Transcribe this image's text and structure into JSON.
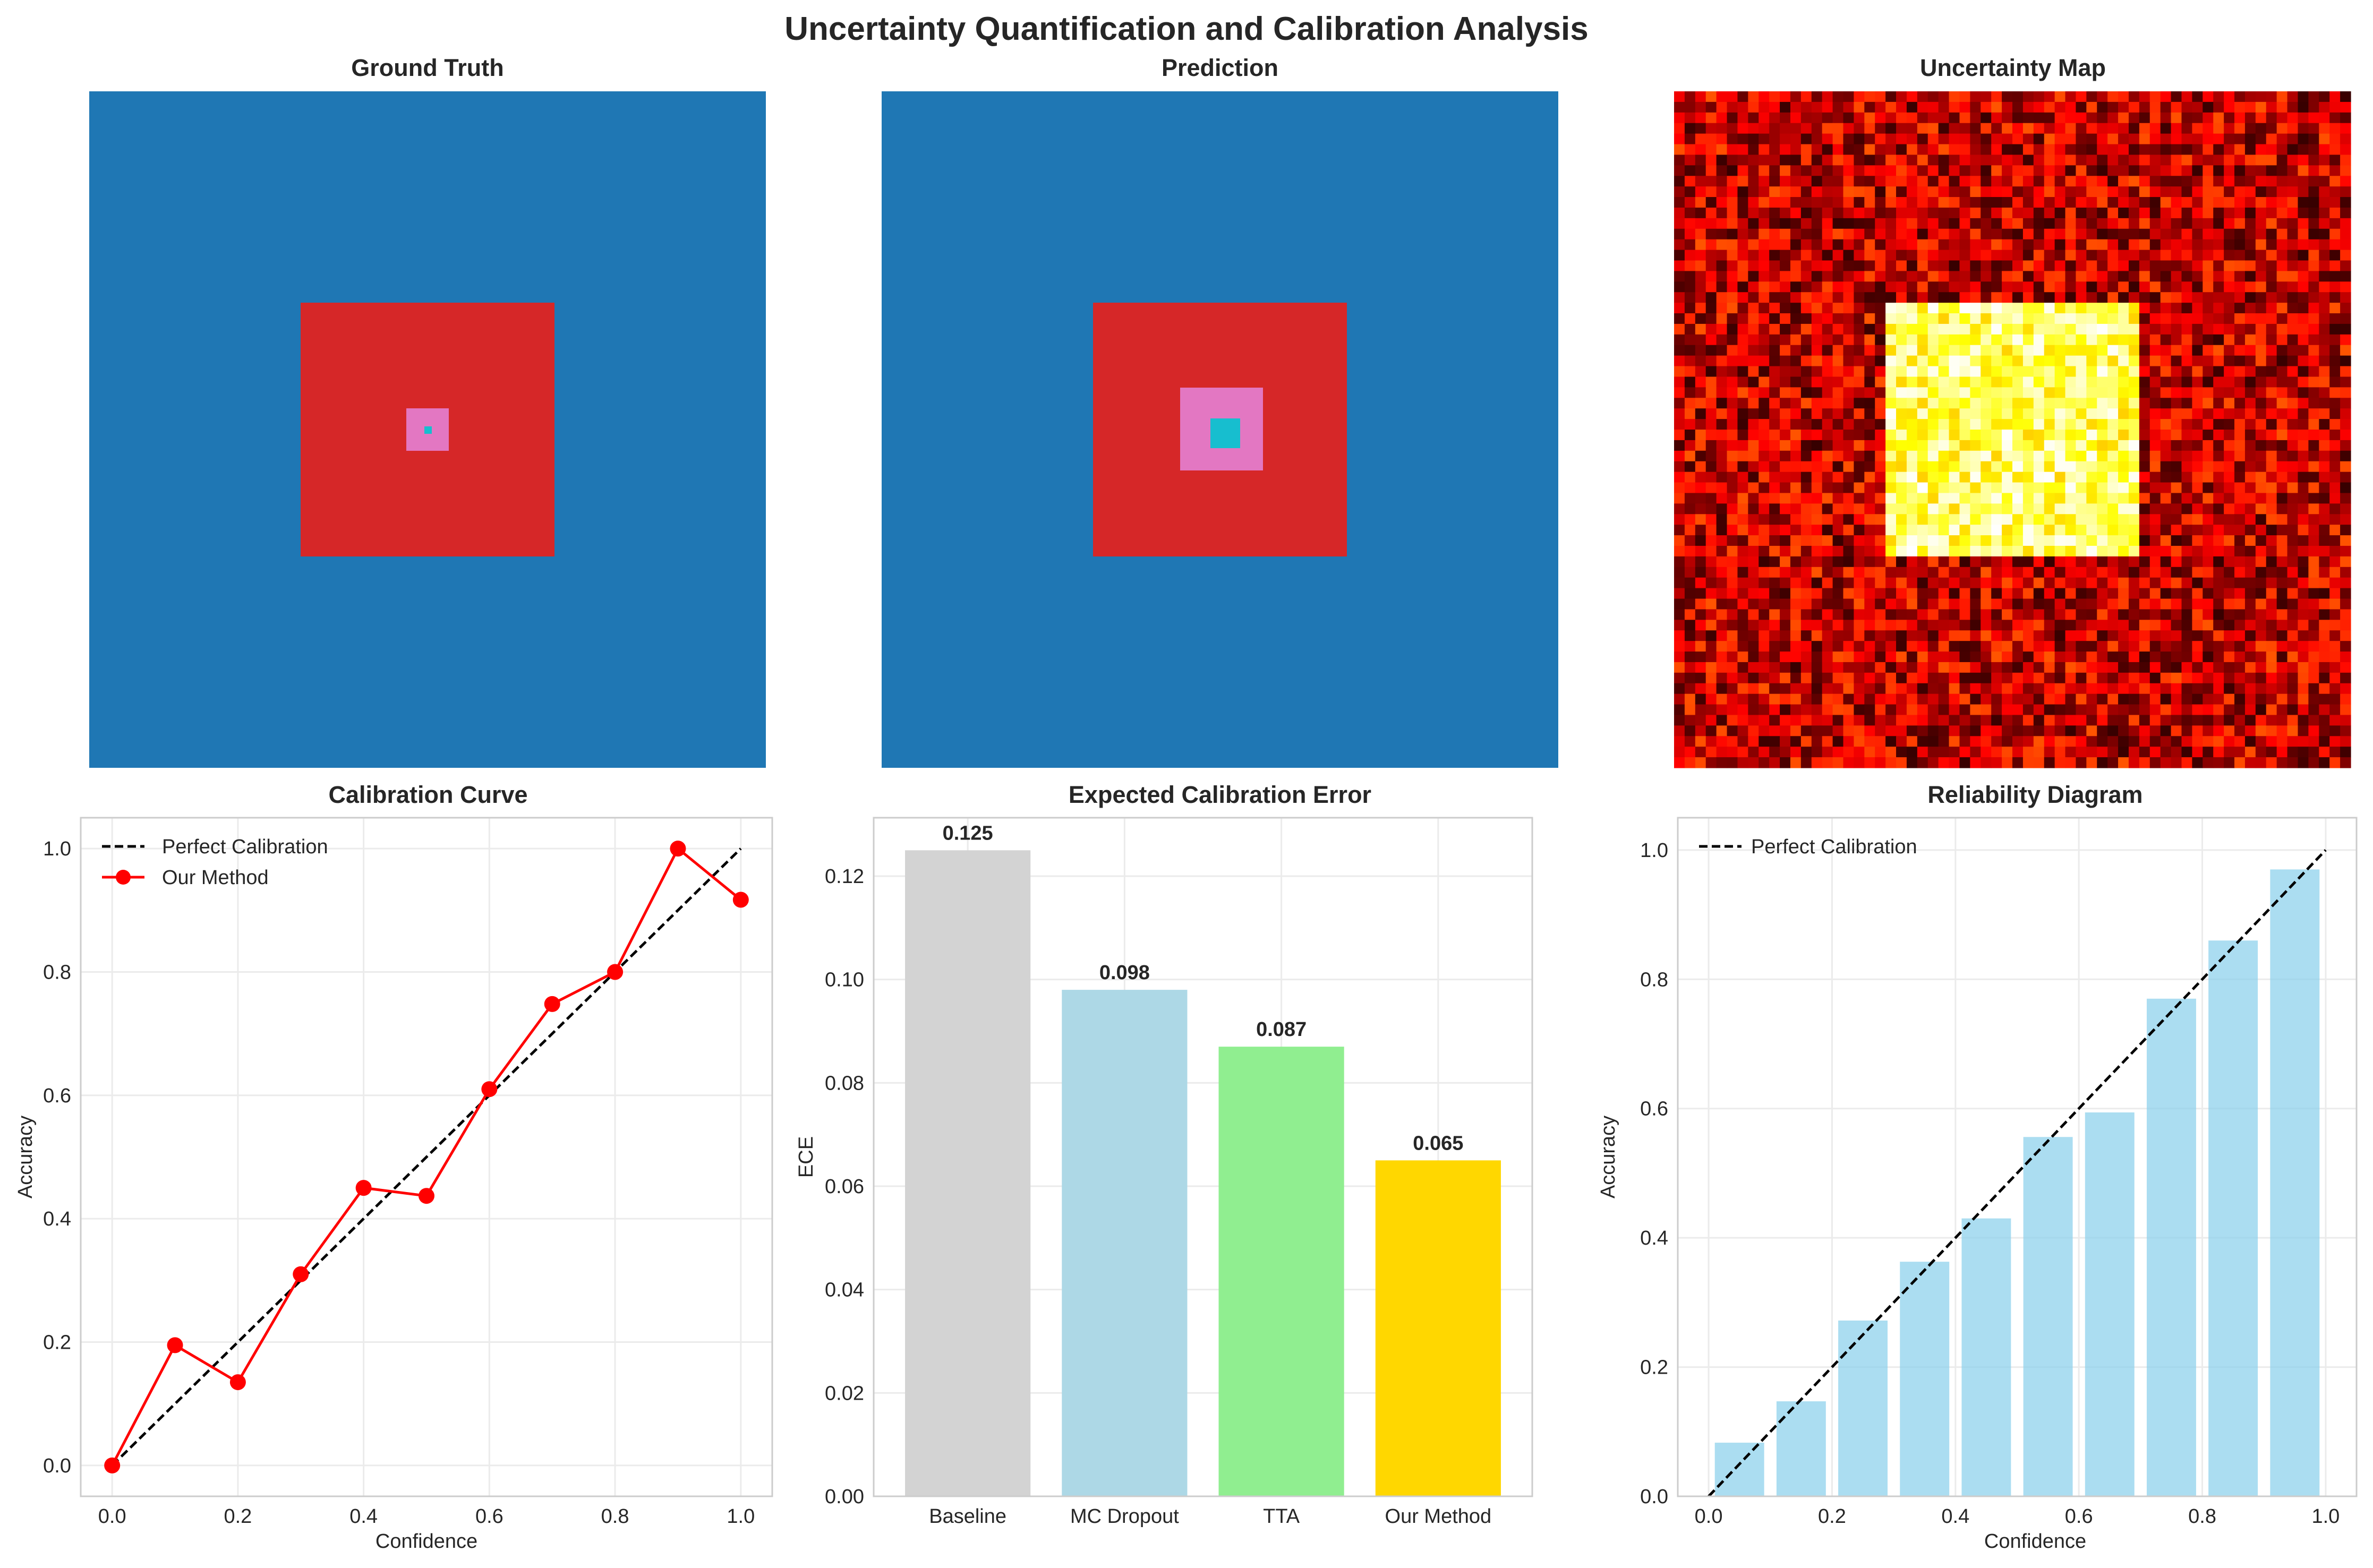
{
  "suptitle": "Uncertainty Quantification and Calibration Analysis",
  "colors": {
    "background": "#1f77b4",
    "class1": "#d62728",
    "class2": "#e377c2",
    "class3": "#17becf",
    "red_line": "#ff0000",
    "bars": [
      "#d3d3d3",
      "#add8e6",
      "#90ee90",
      "#ffd700"
    ],
    "rel_bar": "#87ceeb"
  },
  "chart_data": [
    {
      "type": "heatmap",
      "title": "Ground Truth",
      "grid": "off",
      "description_regions": [
        {
          "class": "background",
          "color": "#1f77b4"
        },
        {
          "class": "region-1",
          "color": "#d62728"
        },
        {
          "class": "region-2",
          "color": "#e377c2"
        },
        {
          "class": "region-3",
          "color": "#17becf"
        }
      ]
    },
    {
      "type": "heatmap",
      "title": "Prediction",
      "grid": "off",
      "description_regions": [
        {
          "class": "background",
          "color": "#1f77b4"
        },
        {
          "class": "region-1",
          "color": "#d62728"
        },
        {
          "class": "region-2",
          "color": "#e377c2"
        },
        {
          "class": "region-3",
          "color": "#17becf"
        }
      ]
    },
    {
      "type": "heatmap",
      "title": "Uncertainty Map",
      "colormap": "hot",
      "grid_size": 64,
      "grid": "off"
    },
    {
      "type": "line",
      "title": "Calibration Curve",
      "xlabel": "Confidence",
      "ylabel": "Accuracy",
      "xlim": [
        -0.05,
        1.05
      ],
      "ylim": [
        -0.05,
        1.05
      ],
      "xticks": [
        "0.0",
        "0.2",
        "0.4",
        "0.6",
        "0.8",
        "1.0"
      ],
      "yticks": [
        "0.0",
        "0.2",
        "0.4",
        "0.6",
        "0.8",
        "1.0"
      ],
      "legend": "top-left",
      "grid": "on",
      "series": [
        {
          "name": "Perfect Calibration",
          "style": "dashed",
          "color": "#000000",
          "x": [
            0,
            1
          ],
          "y": [
            0,
            1
          ]
        },
        {
          "name": "Our Method",
          "style": "solid-marker",
          "color": "#ff0000",
          "x": [
            0.0,
            0.1,
            0.2,
            0.3,
            0.4,
            0.5,
            0.6,
            0.7,
            0.8,
            0.9,
            1.0
          ],
          "y": [
            0.0,
            0.195,
            0.135,
            0.31,
            0.45,
            0.437,
            0.61,
            0.748,
            0.8,
            1.0,
            0.917
          ]
        }
      ]
    },
    {
      "type": "bar",
      "title": "Expected Calibration Error",
      "xlabel": "",
      "ylabel": "ECE",
      "ylim": [
        0,
        0.1313
      ],
      "yticks": [
        "0.00",
        "0.02",
        "0.04",
        "0.06",
        "0.08",
        "0.10",
        "0.12"
      ],
      "grid": "on",
      "categories": [
        "Baseline",
        "MC Dropout",
        "TTA",
        "Our Method"
      ],
      "values": [
        0.125,
        0.098,
        0.087,
        0.065
      ],
      "value_labels": [
        "0.125",
        "0.098",
        "0.087",
        "0.065"
      ]
    },
    {
      "type": "bar",
      "title": "Reliability Diagram",
      "xlabel": "Confidence",
      "ylabel": "Accuracy",
      "xlim": [
        -0.05,
        1.05
      ],
      "ylim": [
        0,
        1.05
      ],
      "xticks": [
        "0.0",
        "0.2",
        "0.4",
        "0.6",
        "0.8",
        "1.0"
      ],
      "yticks": [
        "0.0",
        "0.2",
        "0.4",
        "0.6",
        "0.8",
        "1.0"
      ],
      "legend": "top-left",
      "grid": "on",
      "bin_centers": [
        0.05,
        0.15,
        0.25,
        0.35,
        0.45,
        0.55,
        0.65,
        0.75,
        0.85,
        0.95
      ],
      "values": [
        0.083,
        0.147,
        0.272,
        0.363,
        0.43,
        0.556,
        0.594,
        0.77,
        0.86,
        0.97
      ],
      "series": [
        {
          "name": "Perfect Calibration",
          "style": "dashed",
          "color": "#000000",
          "x": [
            0,
            1
          ],
          "y": [
            0,
            1
          ]
        }
      ]
    }
  ]
}
